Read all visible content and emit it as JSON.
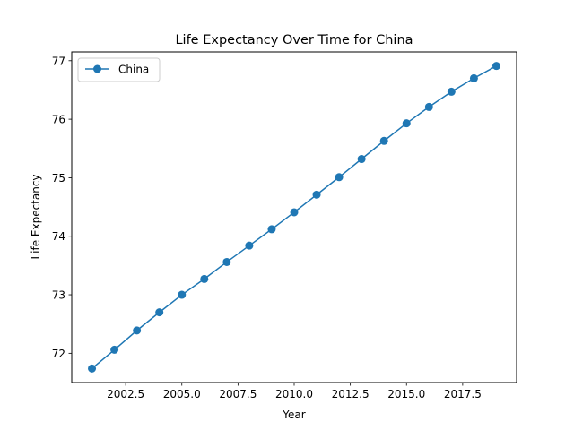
{
  "chart_data": {
    "type": "line",
    "title": "Life Expectancy Over Time for China",
    "xlabel": "Year",
    "ylabel": "Life Expectancy",
    "xlim": [
      2000.1,
      2019.9
    ],
    "ylim": [
      71.5,
      77.15
    ],
    "xticks": [
      2002.5,
      2005.0,
      2007.5,
      2010.0,
      2012.5,
      2015.0,
      2017.5
    ],
    "xtick_labels": [
      "2002.5",
      "2005.0",
      "2007.5",
      "2010.0",
      "2012.5",
      "2015.0",
      "2017.5"
    ],
    "yticks": [
      72,
      73,
      74,
      75,
      76,
      77
    ],
    "ytick_labels": [
      "72",
      "73",
      "74",
      "75",
      "76",
      "77"
    ],
    "grid": false,
    "legend_position": "upper-left",
    "series": [
      {
        "name": "China",
        "color": "#1f77b4",
        "marker": "circle",
        "x": [
          2001,
          2002,
          2003,
          2004,
          2005,
          2006,
          2007,
          2008,
          2009,
          2010,
          2011,
          2012,
          2013,
          2014,
          2015,
          2016,
          2017,
          2018,
          2019
        ],
        "y": [
          71.74,
          72.06,
          72.39,
          72.7,
          73.0,
          73.27,
          73.56,
          73.84,
          74.12,
          74.41,
          74.71,
          75.01,
          75.32,
          75.63,
          75.93,
          76.21,
          76.47,
          76.7,
          76.91
        ]
      }
    ]
  }
}
